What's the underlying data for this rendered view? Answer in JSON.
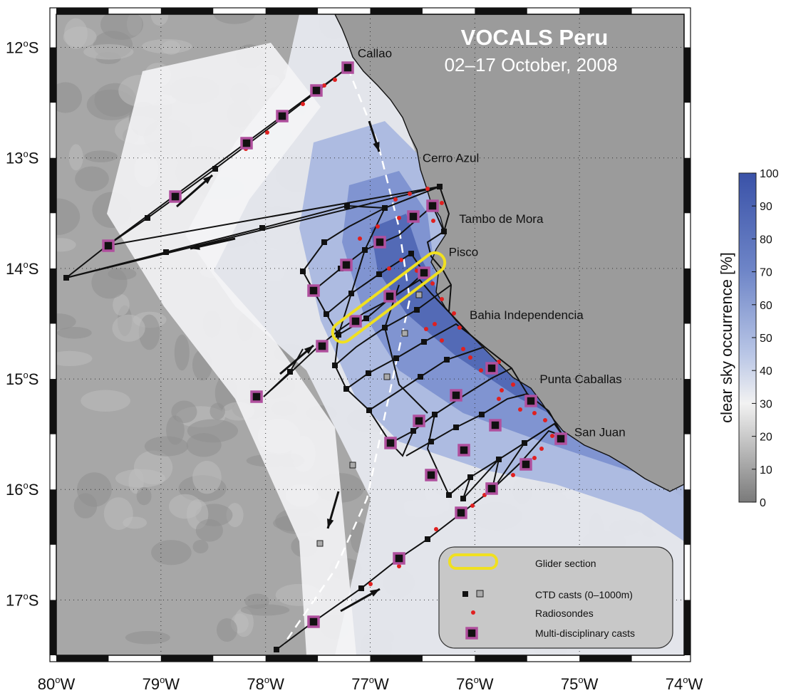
{
  "title": "VOCALS Peru",
  "subtitle": "02–17 October, 2008",
  "colorbar": {
    "label": "clear sky occurrence [%]",
    "ticks": [
      "100",
      "90",
      "80",
      "70",
      "60",
      "50",
      "40",
      "30",
      "20",
      "10",
      "0"
    ]
  },
  "axes": {
    "lon_labels": [
      {
        "deg": "80",
        "hem": "W",
        "lon": -80
      },
      {
        "deg": "79",
        "hem": "W",
        "lon": -79
      },
      {
        "deg": "78",
        "hem": "W",
        "lon": -78
      },
      {
        "deg": "77",
        "hem": "W",
        "lon": -77
      },
      {
        "deg": "76",
        "hem": "W",
        "lon": -76
      },
      {
        "deg": "75",
        "hem": "W",
        "lon": -75
      },
      {
        "deg": "74",
        "hem": "W",
        "lon": -74
      }
    ],
    "lat_labels": [
      {
        "deg": "12",
        "hem": "S",
        "lat": -12
      },
      {
        "deg": "13",
        "hem": "S",
        "lat": -13
      },
      {
        "deg": "14",
        "hem": "S",
        "lat": -14
      },
      {
        "deg": "15",
        "hem": "S",
        "lat": -15
      },
      {
        "deg": "16",
        "hem": "S",
        "lat": -16
      },
      {
        "deg": "17",
        "hem": "S",
        "lat": -17
      }
    ],
    "lon_range": [
      -80,
      -74
    ],
    "lat_range": [
      -17.5,
      -11.7
    ],
    "grid": "dotted"
  },
  "places": [
    {
      "name": "Callao",
      "lon": -77.12,
      "lat": -12.05
    },
    {
      "name": "Cerro Azul",
      "lon": -76.5,
      "lat": -13.0
    },
    {
      "name": "Tambo de Mora",
      "lon": -76.15,
      "lat": -13.55
    },
    {
      "name": "Pisco",
      "lon": -76.25,
      "lat": -13.85
    },
    {
      "name": "Bahia Independencia",
      "lon": -76.05,
      "lat": -14.42
    },
    {
      "name": "Punta Caballas",
      "lon": -75.38,
      "lat": -15.0
    },
    {
      "name": "San Juan",
      "lon": -75.05,
      "lat": -15.48
    }
  ],
  "legend": {
    "glider": "Glider section",
    "ctd": "CTD casts (0–1000m)",
    "radiosondes": "Radiosondes",
    "multi": "Multi-disciplinary casts"
  },
  "colors": {
    "ocean_gray": "#9c9c9c",
    "land": "#9a9a9a",
    "clear_sky_blue": "#3a55aa",
    "track": "#111111",
    "multi_cast": "#b0509e",
    "radiosonde": "#e02020",
    "glider": "#f0e020"
  }
}
